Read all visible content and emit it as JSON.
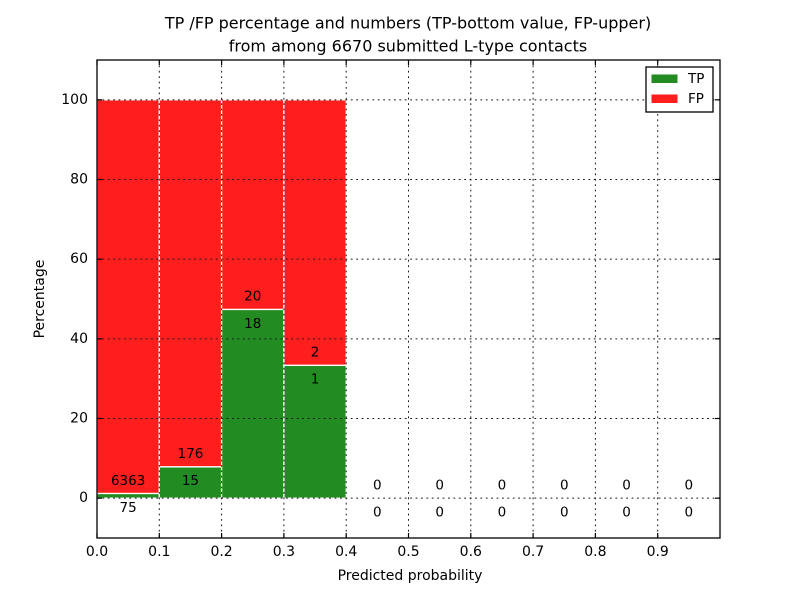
{
  "chart_data": {
    "type": "bar",
    "stacked": true,
    "title_lines": [
      "TP /FP percentage and numbers (TP-bottom value, FP-upper)",
      "from among 6670 submitted L-type contacts"
    ],
    "xlabel": "Predicted probability",
    "ylabel": "Percentage",
    "xlim": [
      0.0,
      1.0
    ],
    "ylim": [
      -10,
      110
    ],
    "xtick_labels": [
      "0.0",
      "0.1",
      "0.2",
      "0.3",
      "0.4",
      "0.5",
      "0.6",
      "0.7",
      "0.8",
      "0.9"
    ],
    "xtick_values": [
      0.0,
      0.1,
      0.2,
      0.3,
      0.4,
      0.5,
      0.6,
      0.7,
      0.8,
      0.9
    ],
    "ytick_labels": [
      "0",
      "20",
      "40",
      "60",
      "80",
      "100"
    ],
    "ytick_values": [
      0,
      20,
      40,
      60,
      80,
      100
    ],
    "grid": {
      "visible": true,
      "style": "dotted",
      "above_bars": true
    },
    "bar_width": 0.1,
    "total_contacts": 6670,
    "bins": [
      {
        "x_start": 0.0,
        "x_end": 0.1,
        "tp_count": 75,
        "fp_count": 6363,
        "tp_pct": 1.165,
        "fp_pct": 98.835
      },
      {
        "x_start": 0.1,
        "x_end": 0.2,
        "tp_count": 15,
        "fp_count": 176,
        "tp_pct": 7.853,
        "fp_pct": 92.147
      },
      {
        "x_start": 0.2,
        "x_end": 0.3,
        "tp_count": 18,
        "fp_count": 20,
        "tp_pct": 47.368,
        "fp_pct": 52.632
      },
      {
        "x_start": 0.3,
        "x_end": 0.4,
        "tp_count": 1,
        "fp_count": 2,
        "tp_pct": 33.333,
        "fp_pct": 66.667
      },
      {
        "x_start": 0.4,
        "x_end": 0.5,
        "tp_count": 0,
        "fp_count": 0,
        "tp_pct": 0,
        "fp_pct": 0
      },
      {
        "x_start": 0.5,
        "x_end": 0.6,
        "tp_count": 0,
        "fp_count": 0,
        "tp_pct": 0,
        "fp_pct": 0
      },
      {
        "x_start": 0.6,
        "x_end": 0.7,
        "tp_count": 0,
        "fp_count": 0,
        "tp_pct": 0,
        "fp_pct": 0
      },
      {
        "x_start": 0.7,
        "x_end": 0.8,
        "tp_count": 0,
        "fp_count": 0,
        "tp_pct": 0,
        "fp_pct": 0
      },
      {
        "x_start": 0.8,
        "x_end": 0.9,
        "tp_count": 0,
        "fp_count": 0,
        "tp_pct": 0,
        "fp_pct": 0
      },
      {
        "x_start": 0.9,
        "x_end": 1.0,
        "tp_count": 0,
        "fp_count": 0,
        "tp_pct": 0,
        "fp_pct": 0
      }
    ],
    "legend": {
      "position": "upper right",
      "entries": [
        {
          "label": "TP",
          "color": "#228b22"
        },
        {
          "label": "FP",
          "color": "#fe1e1e"
        }
      ]
    },
    "colors": {
      "tp": "#228b22",
      "fp": "#fe1e1e",
      "bar_edge": "#ffffff",
      "grid": "#1a1a1a",
      "axis": "#000000",
      "text": "#000000",
      "background": "#ffffff"
    }
  }
}
